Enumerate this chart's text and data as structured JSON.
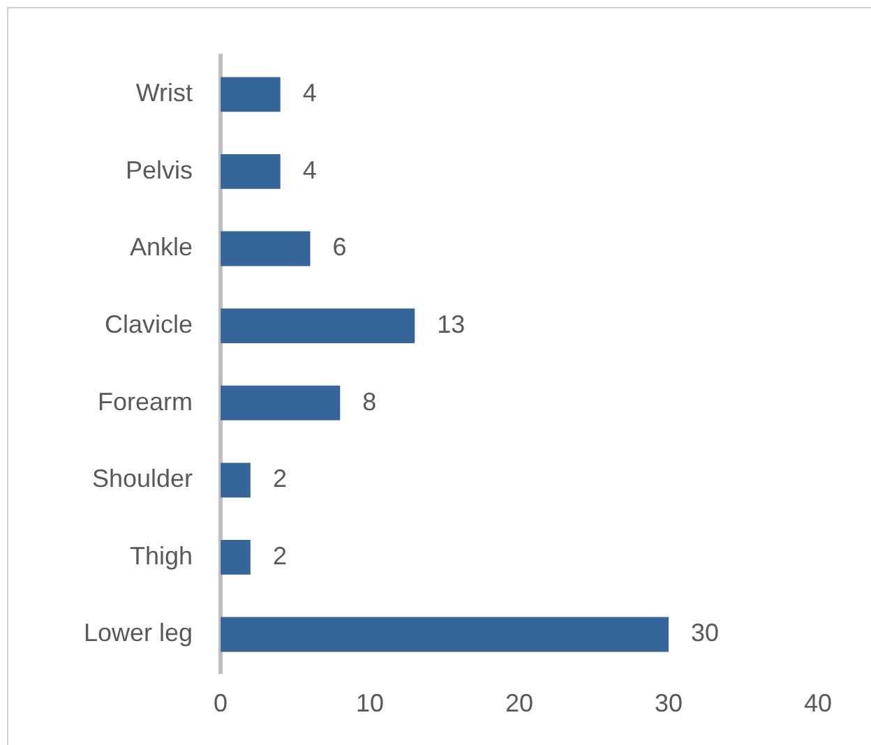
{
  "chart_data": {
    "type": "bar",
    "orientation": "horizontal",
    "categories": [
      "Wrist",
      "Pelvis",
      "Ankle",
      "Clavicle",
      "Forearm",
      "Shoulder",
      "Thigh",
      "Lower leg"
    ],
    "values": [
      4,
      4,
      6,
      13,
      8,
      2,
      2,
      30
    ],
    "color": "#35659a",
    "xlim": [
      0,
      40
    ],
    "xticks": [
      0,
      10,
      20,
      30,
      40
    ],
    "grid": false,
    "legend": false,
    "data_labels": true
  }
}
